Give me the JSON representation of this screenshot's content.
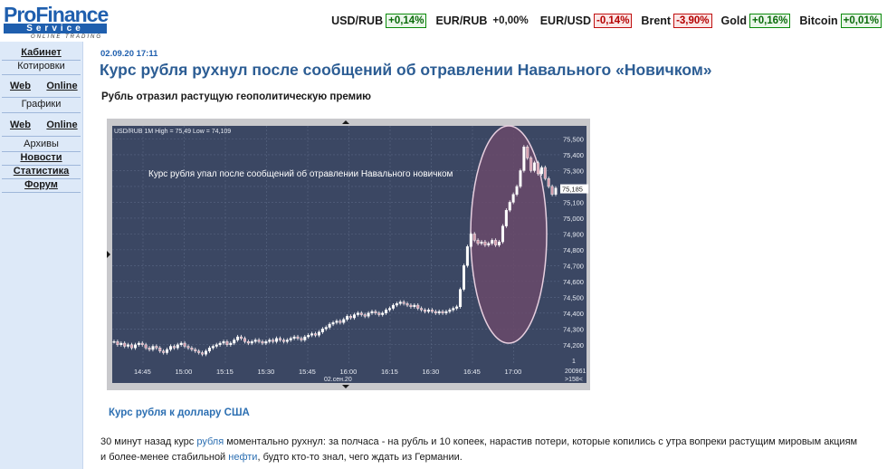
{
  "logo": {
    "main": "ProFinance",
    "service": "Service",
    "tagline": "ONLINE TRADING"
  },
  "tickers": [
    {
      "name": "USD/RUB",
      "change": "+0,14%",
      "dir": "up"
    },
    {
      "name": "EUR/RUB",
      "change": "+0,00%",
      "dir": "nt"
    },
    {
      "name": "EUR/USD",
      "change": "-0,14%",
      "dir": "dn"
    },
    {
      "name": "Brent",
      "change": "-3,90%",
      "dir": "dn"
    },
    {
      "name": "Gold",
      "change": "+0,16%",
      "dir": "up"
    },
    {
      "name": "Bitcoin",
      "change": "+0,01%",
      "dir": "up"
    }
  ],
  "sidebar": {
    "cabinet": "Кабинет",
    "quotes": "Котировки",
    "quotes_web": "Web",
    "quotes_online": "Online",
    "charts": "Графики",
    "charts_web": "Web",
    "charts_online": "Online",
    "archives": "Архивы",
    "news": "Новости",
    "stats": "Статистика",
    "forum": "Форум"
  },
  "article": {
    "date": "02.09.20 17:11",
    "title": "Курс рубля рухнул после сообщений об отравлении Навального «Новичком»",
    "subtitle": "Рубль отразил растущую геополитическую премию",
    "caption": "Курс рубля к доллару США",
    "body_1": "30 минут назад курс ",
    "body_link1": "рубля",
    "body_2": " моментально рухнул: за полчаса - на рубль и 10 копеек, нарастив потери, которые копились с утра вопреки растущим мировым акциям и более-менее стабильной ",
    "body_link2": "нефти",
    "body_3": ", будто кто-то знал, чего ждать из Германии."
  },
  "chart": {
    "header": "USD/RUB 1M High = 75,49 Low = 74,109",
    "annotation": "Курс рубля упал после сообщений об отравлении Навального новичком",
    "current": "75,185",
    "date_label": "02.сен.20",
    "corner_top": "1",
    "corner_a": "200961",
    "corner_b": ">158<",
    "colors": {
      "bg": "#3b4763",
      "grid": "#5a6784",
      "candle": "#ffffff",
      "ellipse_fill": "#6a4a6a",
      "ellipse_stroke": "#e8d0e0"
    }
  },
  "chart_data": {
    "type": "candlestick",
    "title": "USD/RUB 1M High = 75,49 Low = 74,109",
    "x_ticks": [
      "14:45",
      "15:00",
      "15:15",
      "15:30",
      "15:45",
      "16:00",
      "16:15",
      "16:30",
      "16:45",
      "17:00"
    ],
    "y_ticks": [
      "75,500",
      "75,400",
      "75,300",
      "75,200",
      "75,100",
      "75,000",
      "74,900",
      "74,800",
      "74,700",
      "74,600",
      "74,500",
      "74,400",
      "74,300",
      "74,200"
    ],
    "ylim": [
      74.109,
      75.49
    ],
    "series": [
      {
        "name": "USD/RUB",
        "close": [
          74.22,
          74.2,
          74.21,
          74.19,
          74.2,
          74.18,
          74.2,
          74.21,
          74.2,
          74.18,
          74.17,
          74.19,
          74.18,
          74.16,
          74.15,
          74.17,
          74.19,
          74.18,
          74.2,
          74.21,
          74.19,
          74.18,
          74.17,
          74.16,
          74.15,
          74.14,
          74.16,
          74.18,
          74.19,
          74.2,
          74.21,
          74.22,
          74.2,
          74.21,
          74.23,
          74.25,
          74.24,
          74.22,
          74.21,
          74.22,
          74.23,
          74.22,
          74.21,
          74.22,
          74.23,
          74.22,
          74.24,
          74.23,
          74.22,
          74.23,
          74.24,
          74.25,
          74.24,
          74.23,
          74.25,
          74.26,
          74.27,
          74.26,
          74.28,
          74.3,
          74.31,
          74.33,
          74.34,
          74.35,
          74.34,
          74.36,
          74.38,
          74.37,
          74.39,
          74.4,
          74.39,
          74.38,
          74.4,
          74.41,
          74.4,
          74.39,
          74.4,
          74.42,
          74.43,
          74.45,
          74.46,
          74.47,
          74.46,
          74.45,
          74.44,
          74.45,
          74.43,
          74.42,
          74.41,
          74.42,
          74.41,
          74.4,
          74.41,
          74.4,
          74.41,
          74.42,
          74.43,
          74.44,
          74.55,
          74.7,
          74.82,
          74.9,
          74.86,
          74.84,
          74.85,
          74.83,
          74.84,
          74.86,
          74.83,
          74.85,
          74.95,
          75.05,
          75.1,
          75.15,
          75.2,
          75.3,
          75.45,
          75.38,
          75.3,
          75.35,
          75.28,
          75.32,
          75.25,
          75.2,
          75.15,
          75.19
        ]
      }
    ]
  }
}
